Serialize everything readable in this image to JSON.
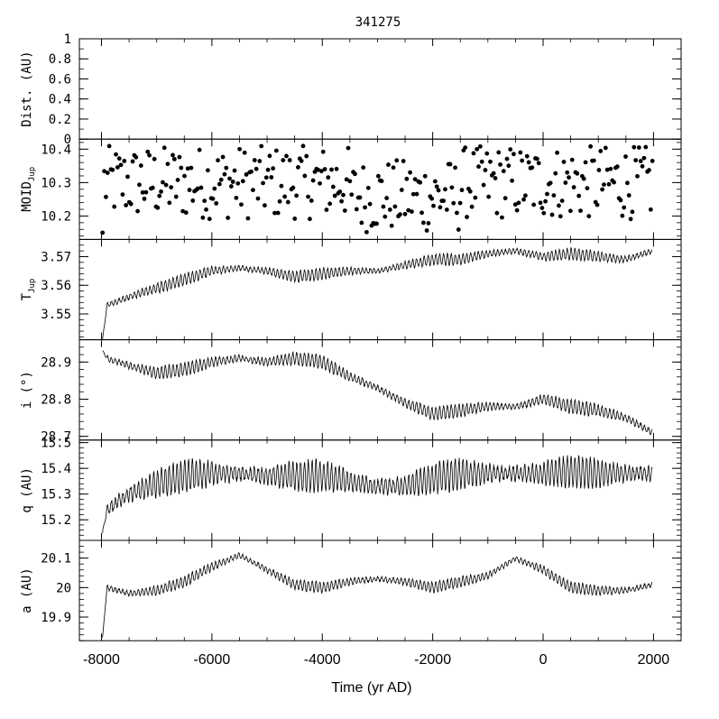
{
  "figure": {
    "title": "341275",
    "xlabel": "Time (yr AD)"
  },
  "chart_data": {
    "type": "line",
    "title": "341275",
    "xlabel": "Time (yr AD)",
    "xlim": [
      -8400,
      2500
    ],
    "xticks": [
      -8000,
      -6000,
      -4000,
      -2000,
      0,
      2000
    ],
    "xtick_labels": [
      "-8000",
      "-6000",
      "-4000",
      "-2000",
      "0",
      "2000"
    ],
    "panels": [
      {
        "key": "dist",
        "kind": "empty",
        "ylabel": "Dist. (AU)",
        "ylabel_sub": "",
        "ylim": [
          0,
          1
        ],
        "yticks": [
          0,
          0.2,
          0.4,
          0.6,
          0.8,
          1
        ],
        "ytick_labels": [
          "0",
          "0.2",
          "0.4",
          "0.6",
          "0.8",
          "1"
        ],
        "minor": 0.1
      },
      {
        "key": "moid",
        "kind": "scatter",
        "ylabel": "MOID",
        "ylabel_sub": "Jup",
        "ylim": [
          10.13,
          10.43
        ],
        "yticks": [
          10.2,
          10.3,
          10.4
        ],
        "ytick_labels": [
          "10.2",
          "10.3",
          "10.4"
        ],
        "minor": 0.02,
        "series": {
          "x_start": -7980,
          "x_end": 1980,
          "count": 330,
          "y0": 10.2,
          "y_mid": 10.3,
          "amp": 0.11,
          "start_value": 10.15
        }
      },
      {
        "key": "tjup",
        "kind": "line",
        "ylabel": "T",
        "ylabel_sub": "Jup",
        "ylim": [
          3.541,
          3.576
        ],
        "yticks": [
          3.55,
          3.56,
          3.57
        ],
        "ytick_labels": [
          "3.55",
          "3.56",
          "3.57"
        ],
        "minor": 0.002,
        "series": {
          "x": [
            -7980,
            -7900,
            -7500,
            -7000,
            -6500,
            -6000,
            -5500,
            -5000,
            -4500,
            -4000,
            -3500,
            -3000,
            -2500,
            -2000,
            -1500,
            -1000,
            -500,
            0,
            500,
            1000,
            1500,
            1980
          ],
          "y": [
            3.541,
            3.553,
            3.556,
            3.559,
            3.562,
            3.565,
            3.566,
            3.565,
            3.563,
            3.564,
            3.565,
            3.565,
            3.567,
            3.569,
            3.569,
            3.571,
            3.572,
            3.57,
            3.571,
            3.57,
            3.569,
            3.572
          ],
          "osc_amp": 0.002,
          "osc_period": 70
        }
      },
      {
        "key": "incl",
        "kind": "line",
        "ylabel": "i (°)",
        "ylabel_sub": "",
        "ylim": [
          28.69,
          28.96
        ],
        "yticks": [
          28.7,
          28.8,
          28.9
        ],
        "ytick_labels": [
          "28.7",
          "28.8",
          "28.9"
        ],
        "minor": 0.02,
        "series": {
          "x": [
            -7980,
            -7900,
            -7500,
            -7000,
            -6500,
            -6000,
            -5500,
            -5000,
            -4500,
            -4000,
            -3500,
            -3000,
            -2500,
            -2000,
            -1500,
            -1000,
            -500,
            0,
            500,
            1000,
            1500,
            1980
          ],
          "y": [
            28.93,
            28.91,
            28.89,
            28.87,
            28.88,
            28.9,
            28.91,
            28.9,
            28.91,
            28.9,
            28.86,
            28.83,
            28.79,
            28.76,
            28.77,
            28.78,
            28.78,
            28.8,
            28.78,
            28.77,
            28.75,
            28.71
          ],
          "osc_amp": 0.018,
          "osc_period": 70
        }
      },
      {
        "key": "q",
        "kind": "line",
        "ylabel": "q (AU)",
        "ylabel_sub": "",
        "ylim": [
          15.12,
          15.51
        ],
        "yticks": [
          15.2,
          15.3,
          15.4,
          15.5
        ],
        "ytick_labels": [
          "15.2",
          "15.3",
          "15.4",
          "15.5"
        ],
        "minor": 0.02,
        "series": {
          "x": [
            -7980,
            -7900,
            -7500,
            -7000,
            -6500,
            -6000,
            -5500,
            -5000,
            -4500,
            -4000,
            -3500,
            -3000,
            -2500,
            -2000,
            -1500,
            -1000,
            -500,
            0,
            500,
            1000,
            1500,
            1980
          ],
          "y": [
            15.15,
            15.24,
            15.3,
            15.34,
            15.37,
            15.38,
            15.38,
            15.37,
            15.37,
            15.37,
            15.35,
            15.33,
            15.33,
            15.36,
            15.38,
            15.38,
            15.38,
            15.38,
            15.39,
            15.38,
            15.38,
            15.38
          ],
          "osc_amp": 0.06,
          "osc_period": 70
        }
      },
      {
        "key": "a",
        "kind": "line",
        "ylabel": "a (AU)",
        "ylabel_sub": "",
        "ylim": [
          19.82,
          20.16
        ],
        "yticks": [
          19.9,
          20,
          20.1
        ],
        "ytick_labels": [
          "19.9",
          "20",
          "20.1"
        ],
        "minor": 0.02,
        "series": {
          "x": [
            -7980,
            -7900,
            -7500,
            -7000,
            -6500,
            -6000,
            -5500,
            -5000,
            -4500,
            -4000,
            -3500,
            -3000,
            -2500,
            -2000,
            -1500,
            -1000,
            -500,
            0,
            500,
            1000,
            1500,
            1980
          ],
          "y": [
            19.83,
            20.0,
            19.98,
            19.99,
            20.02,
            20.07,
            20.11,
            20.06,
            20.01,
            20.0,
            20.02,
            20.03,
            20.02,
            20.0,
            20.02,
            20.04,
            20.1,
            20.06,
            20.0,
            19.99,
            19.99,
            20.01
          ],
          "osc_amp": 0.018,
          "osc_period": 70
        }
      }
    ]
  }
}
